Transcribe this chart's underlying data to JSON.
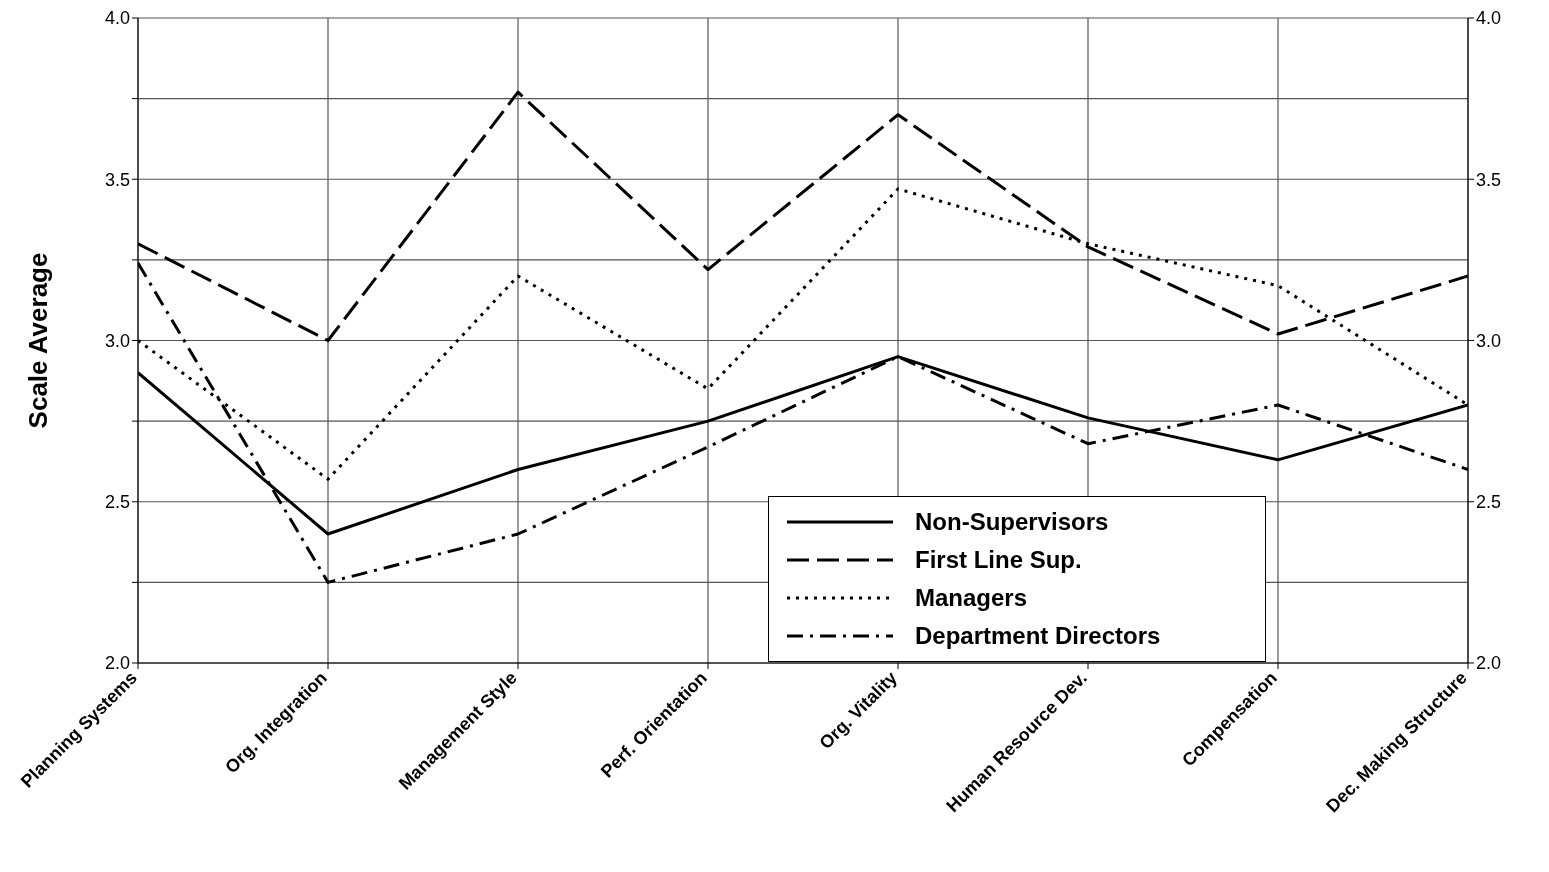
{
  "chart_data": {
    "type": "line",
    "ylabel": "Scale Average",
    "categories": [
      "Planning Systems",
      "Org. Integration",
      "Management Style",
      "Perf. Orientation",
      "Org. Vitality",
      "Human Resource Dev.",
      "Compensation",
      "Dec. Making Structure"
    ],
    "series": [
      {
        "name": "Non-Supervisors",
        "color": "#000000",
        "line_style": "solid",
        "values": [
          2.9,
          2.4,
          2.6,
          2.75,
          2.95,
          2.76,
          2.63,
          2.8
        ]
      },
      {
        "name": "First Line Sup.",
        "color": "#000000",
        "line_style": "dashed",
        "values": [
          3.3,
          3.0,
          3.77,
          3.22,
          3.7,
          3.29,
          3.02,
          3.2
        ]
      },
      {
        "name": "Managers",
        "color": "#000000",
        "line_style": "dotted",
        "values": [
          3.0,
          2.57,
          3.2,
          2.85,
          3.47,
          3.3,
          3.17,
          2.8
        ]
      },
      {
        "name": "Department Directors",
        "color": "#000000",
        "line_style": "dashdot",
        "values": [
          3.24,
          2.25,
          2.4,
          2.67,
          2.95,
          2.68,
          2.8,
          2.6
        ]
      }
    ],
    "ylim": [
      2,
      4
    ],
    "yticks": [
      {
        "value": 2,
        "label": "2.0"
      },
      {
        "value": 2.25,
        "label": null
      },
      {
        "value": 2.5,
        "label": "2.5"
      },
      {
        "value": 2.75,
        "label": null
      },
      {
        "value": 3,
        "label": "3.0"
      },
      {
        "value": 3.25,
        "label": null
      },
      {
        "value": 3.5,
        "label": "3.5"
      },
      {
        "value": 3.75,
        "label": null
      },
      {
        "value": 4,
        "label": "4.0"
      }
    ],
    "y2lim": [
      2,
      4
    ],
    "y2ticks": [
      {
        "value": 2,
        "label": "2.0"
      },
      {
        "value": 2.5,
        "label": "2.5"
      },
      {
        "value": 3,
        "label": "3.0"
      },
      {
        "value": 3.5,
        "label": "3.5"
      },
      {
        "value": 4,
        "label": "4.0"
      }
    ],
    "grid": true,
    "legend": "bottom right",
    "marker": "none"
  }
}
